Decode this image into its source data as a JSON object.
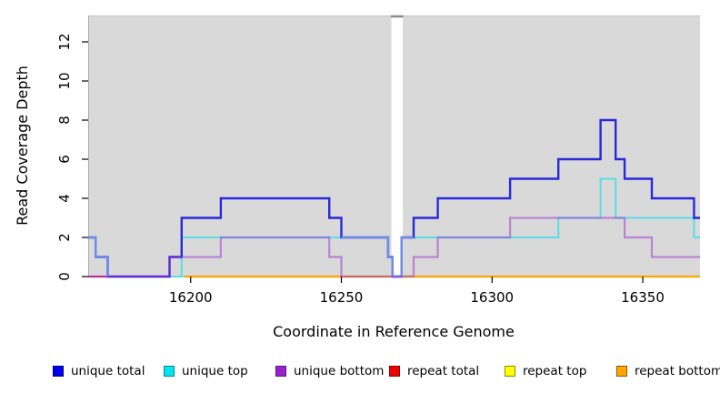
{
  "figure": {
    "background": "#ffffff",
    "plot_background": "#d9d9d9",
    "border_color": "#aaaaaa",
    "gap_top_bar_color": "#8c8c8c"
  },
  "chart_data": {
    "type": "line",
    "subtype": "step-coverage-depth",
    "title": "",
    "xlabel": "Coordinate in Reference Genome",
    "ylabel": "Read Coverage Depth",
    "xlim": [
      16166,
      16369
    ],
    "ylim": [
      0,
      13.35
    ],
    "xticks": [
      16200,
      16250,
      16300,
      16350
    ],
    "yticks": [
      0,
      2,
      4,
      6,
      8,
      10,
      12
    ],
    "grid": false,
    "legend_position": "bottom",
    "gap_region": {
      "from": 16266.6,
      "to": 16270.4,
      "color": "#ffffff"
    },
    "series": [
      {
        "name": "unique total",
        "color": "#2929da",
        "width": 2.4,
        "opacity": 1,
        "z": 6,
        "points": [
          [
            16166,
            2
          ],
          [
            16168.5,
            1
          ],
          [
            16172.5,
            0
          ],
          [
            16193,
            1
          ],
          [
            16197,
            3
          ],
          [
            16210,
            4
          ],
          [
            16246,
            3
          ],
          [
            16250,
            2
          ],
          [
            16265.5,
            1
          ],
          [
            16267,
            0
          ],
          [
            16270,
            2
          ],
          [
            16274,
            3
          ],
          [
            16282,
            4
          ],
          [
            16306,
            5
          ],
          [
            16322,
            6
          ],
          [
            16336,
            8
          ],
          [
            16341,
            6
          ],
          [
            16344,
            5
          ],
          [
            16353,
            4
          ],
          [
            16367,
            3
          ],
          [
            16369,
            3
          ]
        ]
      },
      {
        "name": "unique top",
        "color": "#52dee8",
        "width": 2,
        "opacity": 0.95,
        "z": 5,
        "points": [
          [
            16166,
            2
          ],
          [
            16168.5,
            1
          ],
          [
            16172.5,
            0
          ],
          [
            16197,
            2
          ],
          [
            16265.5,
            1
          ],
          [
            16267,
            0
          ],
          [
            16270,
            2
          ],
          [
            16322,
            3
          ],
          [
            16336,
            5
          ],
          [
            16341,
            3
          ],
          [
            16367,
            2
          ],
          [
            16369,
            2
          ]
        ]
      },
      {
        "name": "unique bottom",
        "color": "#9b30d0",
        "width": 2.2,
        "opacity": 0.5,
        "z": 9,
        "points": [
          [
            16166,
            0
          ],
          [
            16193,
            1
          ],
          [
            16210,
            2
          ],
          [
            16246,
            1
          ],
          [
            16250,
            0
          ],
          [
            16274,
            1
          ],
          [
            16282,
            2
          ],
          [
            16306,
            3
          ],
          [
            16344,
            2
          ],
          [
            16353,
            1
          ],
          [
            16369,
            1
          ]
        ]
      },
      {
        "name": "repeat total",
        "color": "#dc2850",
        "width": 2,
        "opacity": 1,
        "z": 2,
        "points": [
          [
            16166,
            0
          ],
          [
            16369,
            0
          ]
        ]
      },
      {
        "name": "repeat top",
        "color": "#ffff00",
        "width": 2,
        "opacity": 1,
        "z": 1,
        "points": [
          [
            16166,
            0
          ],
          [
            16369,
            0
          ]
        ]
      },
      {
        "name": "repeat bottom",
        "color": "#ffa500",
        "width": 2.2,
        "opacity": 1,
        "z": 4,
        "points": [
          [
            16198,
            0
          ],
          [
            16369,
            0
          ]
        ]
      }
    ],
    "render_overlays": [
      {
        "name": "baseline-yellow-cyan-blend",
        "color": "#a5d8a8",
        "width": 2,
        "opacity": 1,
        "z": 3,
        "points": [
          [
            16193,
            0
          ],
          [
            16198,
            0
          ]
        ]
      },
      {
        "name": "unique-total-top-overlap-tint-left",
        "color": "#6e8de9",
        "width": 2.4,
        "opacity": 1,
        "z": 7,
        "points": [
          [
            16166,
            2
          ],
          [
            16168.5,
            1
          ],
          [
            16172.5,
            0
          ]
        ]
      },
      {
        "name": "unique-total-top-overlap-tint-mid",
        "color": "#6e8de9",
        "width": 2.4,
        "opacity": 1,
        "z": 8,
        "points": [
          [
            16250,
            2
          ],
          [
            16265.5,
            1
          ],
          [
            16267,
            0
          ],
          [
            16270,
            2
          ],
          [
            16274,
            2
          ]
        ]
      }
    ]
  },
  "legend": {
    "items": [
      {
        "label": "unique total",
        "color": "#0000ee",
        "border": "#00008b"
      },
      {
        "label": "unique top",
        "color": "#00e5ee",
        "border": "#008b8b"
      },
      {
        "label": "unique bottom",
        "color": "#9a20ce",
        "border": "#551a8b"
      },
      {
        "label": "repeat total",
        "color": "#ee0000",
        "border": "#8b0000"
      },
      {
        "label": "repeat top",
        "color": "#ffff00",
        "border": "#8b8b00"
      },
      {
        "label": "repeat bottom",
        "color": "#ffa500",
        "border": "#8b5a00"
      }
    ]
  }
}
